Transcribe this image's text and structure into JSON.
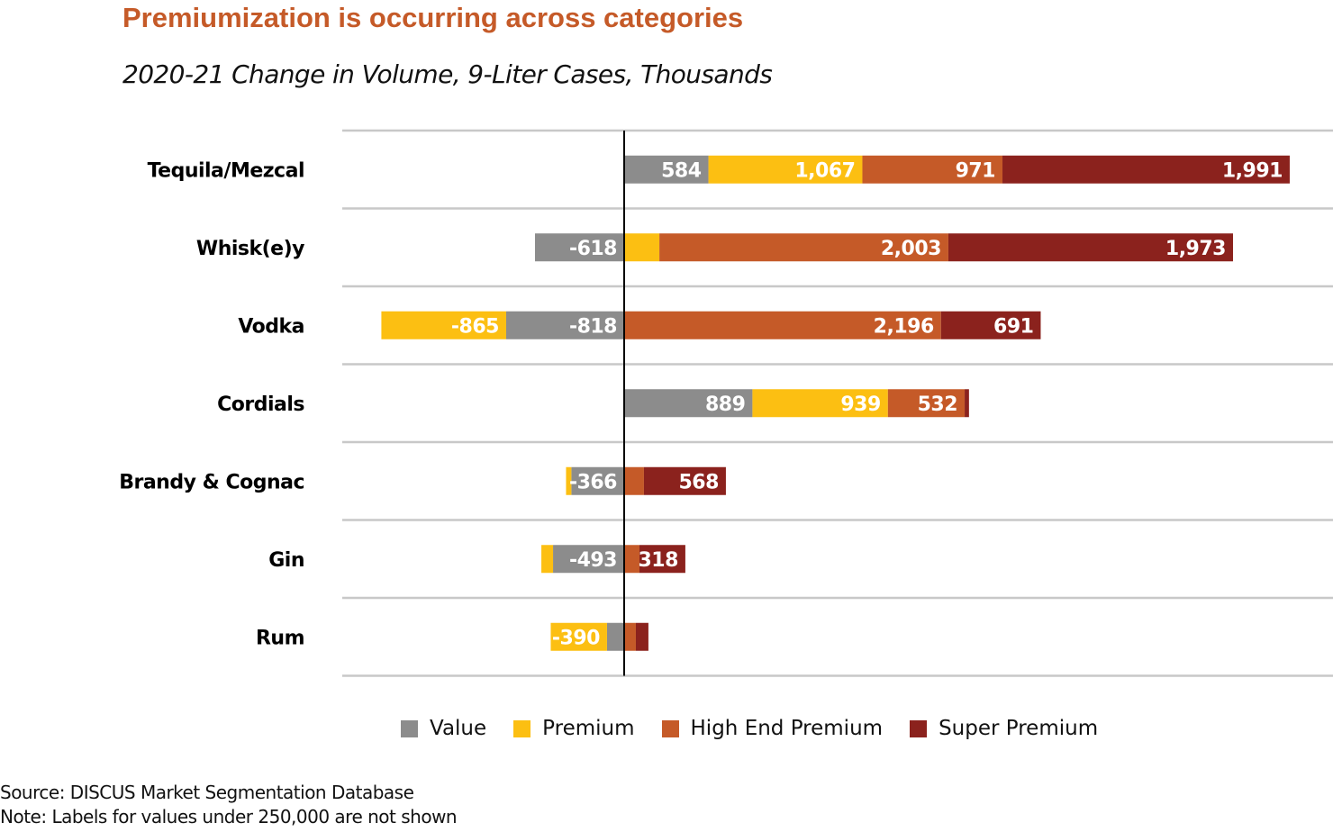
{
  "chart_data": {
    "type": "bar",
    "orientation": "horizontal",
    "stacked": true,
    "diverging": true,
    "title": "Premiumization is occurring across categories",
    "subtitle": "2020-21 Change in Volume, 9-Liter Cases, Thousands",
    "xlabel": "",
    "ylabel": "",
    "xlim": [
      -1954,
      4913
    ],
    "grid": true,
    "legend_position": "bottom",
    "label_threshold": 250,
    "categories": [
      "Tequila/Mezcal",
      "Whisk(e)y",
      "Vodka",
      "Cordials",
      "Brandy & Cognac",
      "Gin",
      "Rum"
    ],
    "series": [
      {
        "name": "Value",
        "color": "#8C8C8C",
        "values": [
          584,
          -618,
          -818,
          889,
          -366,
          -493,
          -119
        ]
      },
      {
        "name": "Premium",
        "color": "#FCBF12",
        "values": [
          1067,
          244,
          -865,
          939,
          -37,
          -81,
          -390
        ]
      },
      {
        "name": "High End Premium",
        "color": "#C55A28",
        "values": [
          971,
          2003,
          2196,
          532,
          137,
          106,
          81
        ]
      },
      {
        "name": "Super Premium",
        "color": "#8B221D",
        "values": [
          1991,
          1973,
          691,
          30,
          568,
          318,
          87
        ]
      }
    ],
    "data_labels": [
      [
        "584",
        "1,067",
        "971",
        "1,991"
      ],
      [
        "-618",
        "",
        "2,003",
        "1,973"
      ],
      [
        "-818",
        "-865",
        "2,196",
        "691"
      ],
      [
        "889",
        "939",
        "532",
        ""
      ],
      [
        "-366",
        "",
        "",
        "568"
      ],
      [
        "-493",
        "",
        "",
        "318"
      ],
      [
        "",
        "-390",
        "",
        ""
      ]
    ]
  },
  "colors": {
    "title": "#C55A28",
    "gridline": "#C8C8C8",
    "axis": "#000000",
    "label_text": "#FFFFFF"
  },
  "footer": {
    "source": "Source: DISCUS Market Segmentation Database",
    "note": "Note: Labels for values under 250,000 are not shown"
  }
}
